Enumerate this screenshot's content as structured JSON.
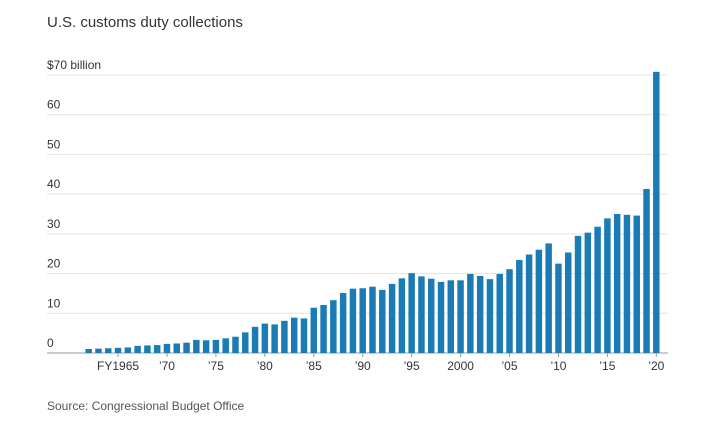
{
  "chart_data": {
    "type": "bar",
    "title": "U.S. customs duty collections",
    "source": "Source: Congressional Budget Office",
    "x": [
      1962,
      1963,
      1964,
      1965,
      1966,
      1967,
      1968,
      1969,
      1970,
      1971,
      1972,
      1973,
      1974,
      1975,
      1976,
      1977,
      1978,
      1979,
      1980,
      1981,
      1982,
      1983,
      1984,
      1985,
      1986,
      1987,
      1988,
      1989,
      1990,
      1991,
      1992,
      1993,
      1994,
      1995,
      1996,
      1997,
      1998,
      1999,
      2000,
      2001,
      2002,
      2003,
      2004,
      2005,
      2006,
      2007,
      2008,
      2009,
      2010,
      2011,
      2012,
      2013,
      2014,
      2015,
      2016,
      2017,
      2018,
      2019,
      2020
    ],
    "values": [
      1.0,
      1.1,
      1.2,
      1.3,
      1.4,
      1.8,
      1.9,
      2.0,
      2.3,
      2.4,
      2.6,
      3.3,
      3.2,
      3.3,
      3.7,
      4.1,
      5.2,
      6.6,
      7.4,
      7.2,
      8.1,
      8.9,
      8.7,
      11.4,
      12.1,
      13.3,
      15.1,
      16.2,
      16.3,
      16.7,
      15.9,
      17.4,
      18.8,
      20.1,
      19.3,
      18.7,
      17.9,
      18.3,
      18.3,
      19.9,
      19.4,
      18.6,
      19.9,
      21.1,
      23.4,
      24.8,
      26.0,
      27.6,
      22.5,
      25.3,
      29.5,
      30.3,
      31.8,
      33.9,
      35.0,
      34.8,
      34.6,
      41.3,
      70.8
    ],
    "color": "#1b7bb5",
    "xlim": [
      1960.5,
      2021.5
    ],
    "xticks": [
      {
        "value": 1965,
        "label": "FY1965"
      },
      {
        "value": 1970,
        "label": "’70"
      },
      {
        "value": 1975,
        "label": "’75"
      },
      {
        "value": 1980,
        "label": "’80"
      },
      {
        "value": 1985,
        "label": "’85"
      },
      {
        "value": 1990,
        "label": "’90"
      },
      {
        "value": 1995,
        "label": "’95"
      },
      2000,
      {
        "value": 2005,
        "label": "’05"
      },
      {
        "value": 2010,
        "label": "’10"
      },
      {
        "value": 2015,
        "label": "’15"
      },
      {
        "value": 2020,
        "label": "’20"
      }
    ],
    "ylim": [
      0,
      70
    ],
    "yticks": [
      0,
      10,
      20,
      30,
      40,
      50,
      60,
      {
        "value": 70,
        "label": "$70 billion"
      }
    ],
    "grid": true
  }
}
